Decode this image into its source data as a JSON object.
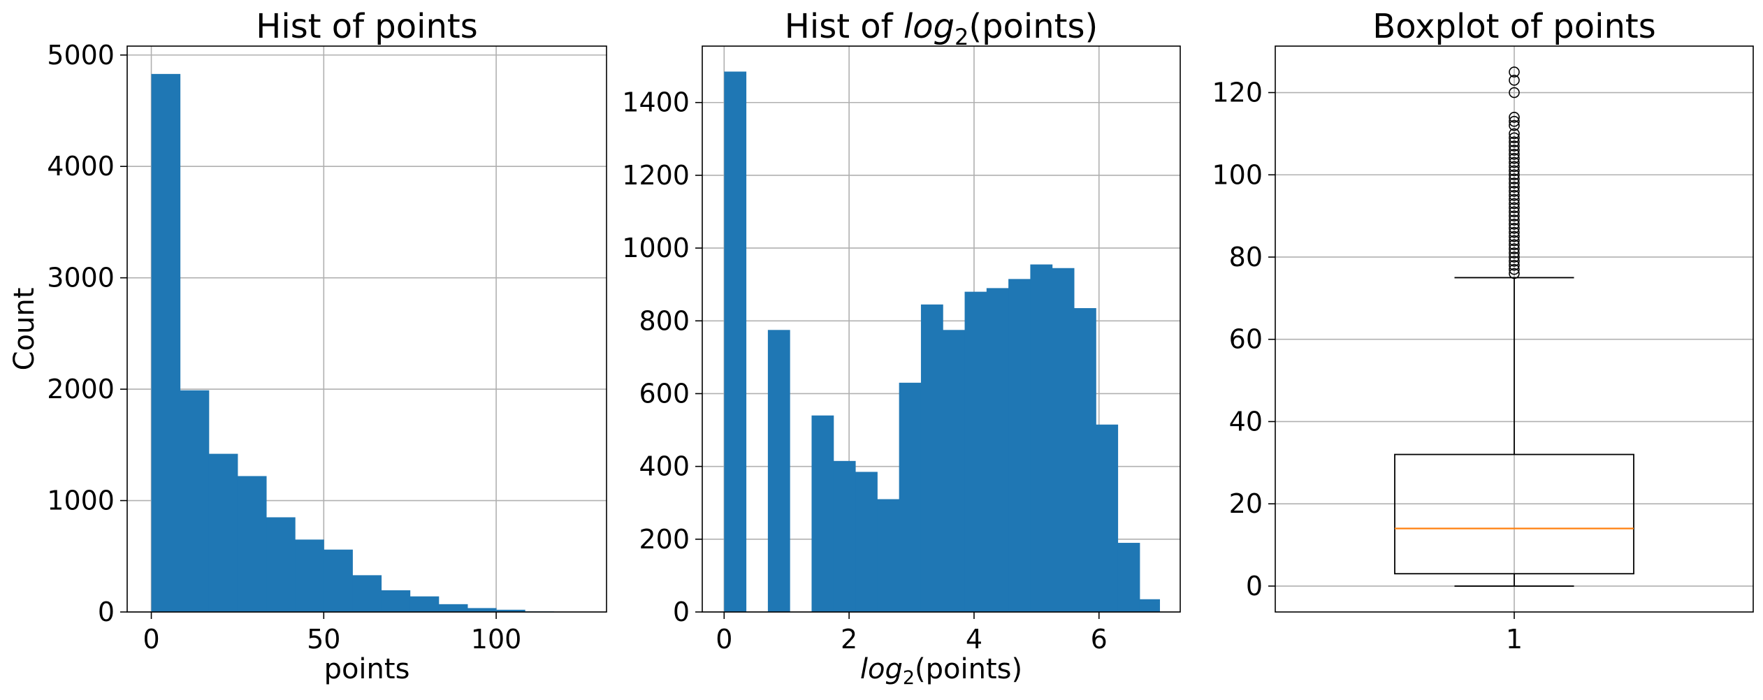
{
  "colors": {
    "bar": "#1f77b4",
    "median": "#ff7f0e",
    "grid": "#b0b0b0",
    "axis": "#000000"
  },
  "chart_data": [
    {
      "type": "bar",
      "subtype": "histogram",
      "title": "Hist of points",
      "xlabel": "points",
      "ylabel": "Count",
      "xlim": [
        -7,
        132
      ],
      "ylim": [
        0,
        5080
      ],
      "xticks": [
        0,
        50,
        100
      ],
      "yticks": [
        0,
        1000,
        2000,
        3000,
        4000,
        5000
      ],
      "grid": true,
      "bins": [
        {
          "x0": 0,
          "x1": 8.33,
          "value": 4830
        },
        {
          "x0": 8.33,
          "x1": 16.67,
          "value": 1990
        },
        {
          "x0": 16.67,
          "x1": 25,
          "value": 1420
        },
        {
          "x0": 25,
          "x1": 33.33,
          "value": 1220
        },
        {
          "x0": 33.33,
          "x1": 41.67,
          "value": 850
        },
        {
          "x0": 41.67,
          "x1": 50,
          "value": 650
        },
        {
          "x0": 50,
          "x1": 58.33,
          "value": 560
        },
        {
          "x0": 58.33,
          "x1": 66.67,
          "value": 330
        },
        {
          "x0": 66.67,
          "x1": 75,
          "value": 195
        },
        {
          "x0": 75,
          "x1": 83.33,
          "value": 140
        },
        {
          "x0": 83.33,
          "x1": 91.67,
          "value": 70
        },
        {
          "x0": 91.67,
          "x1": 100,
          "value": 35
        },
        {
          "x0": 100,
          "x1": 108.33,
          "value": 20
        },
        {
          "x0": 108.33,
          "x1": 116.67,
          "value": 5
        },
        {
          "x0": 116.67,
          "x1": 125,
          "value": 3
        }
      ]
    },
    {
      "type": "bar",
      "subtype": "histogram",
      "title": "Hist of log2(points)",
      "title_parts": [
        "Hist of ",
        "log",
        "2",
        "(points)"
      ],
      "xlabel": "log2(points)",
      "xlabel_parts": [
        "log",
        "2",
        "(points)"
      ],
      "ylabel": "",
      "xlim": [
        -0.35,
        7.3
      ],
      "ylim": [
        0,
        1555
      ],
      "xticks": [
        0,
        2,
        4,
        6
      ],
      "yticks": [
        0,
        200,
        400,
        600,
        800,
        1000,
        1200,
        1400
      ],
      "grid": true,
      "bins": [
        {
          "x0": 0,
          "x1": 0.35,
          "value": 1485
        },
        {
          "x0": 0.35,
          "x1": 0.7,
          "value": 0
        },
        {
          "x0": 0.7,
          "x1": 1.05,
          "value": 775
        },
        {
          "x0": 1.05,
          "x1": 1.4,
          "value": 0
        },
        {
          "x0": 1.4,
          "x1": 1.75,
          "value": 540
        },
        {
          "x0": 1.75,
          "x1": 2.1,
          "value": 415
        },
        {
          "x0": 2.1,
          "x1": 2.45,
          "value": 385
        },
        {
          "x0": 2.45,
          "x1": 2.8,
          "value": 310
        },
        {
          "x0": 2.8,
          "x1": 3.15,
          "value": 630
        },
        {
          "x0": 3.15,
          "x1": 3.5,
          "value": 845
        },
        {
          "x0": 3.5,
          "x1": 3.85,
          "value": 775
        },
        {
          "x0": 3.85,
          "x1": 4.2,
          "value": 880
        },
        {
          "x0": 4.2,
          "x1": 4.55,
          "value": 890
        },
        {
          "x0": 4.55,
          "x1": 4.9,
          "value": 915
        },
        {
          "x0": 4.9,
          "x1": 5.25,
          "value": 955
        },
        {
          "x0": 5.25,
          "x1": 5.6,
          "value": 945
        },
        {
          "x0": 5.6,
          "x1": 5.95,
          "value": 835
        },
        {
          "x0": 5.95,
          "x1": 6.3,
          "value": 515
        },
        {
          "x0": 6.3,
          "x1": 6.65,
          "value": 190
        },
        {
          "x0": 6.65,
          "x1": 6.97,
          "value": 35
        }
      ]
    },
    {
      "type": "boxplot",
      "title": "Boxplot of points",
      "xlabel": "",
      "ylabel": "",
      "xlim": [
        0.5,
        1.5
      ],
      "ylim": [
        -6.3,
        131.3
      ],
      "xticks": [
        1
      ],
      "xticklabels": [
        "1"
      ],
      "yticks": [
        0,
        20,
        40,
        60,
        80,
        100,
        120
      ],
      "grid": true,
      "box": {
        "position": 1,
        "width": 0.5,
        "whisker_low": 0,
        "q1": 3,
        "median": 14,
        "q3": 32,
        "whisker_high": 75
      },
      "fliers": [
        76,
        77,
        78,
        79,
        80,
        81,
        82,
        83,
        84,
        85,
        86,
        87,
        88,
        89,
        90,
        91,
        92,
        93,
        94,
        95,
        96,
        97,
        98,
        99,
        100,
        101,
        102,
        103,
        104,
        105,
        106,
        107,
        108,
        109,
        110,
        112,
        113,
        114,
        120,
        123,
        125
      ]
    }
  ]
}
